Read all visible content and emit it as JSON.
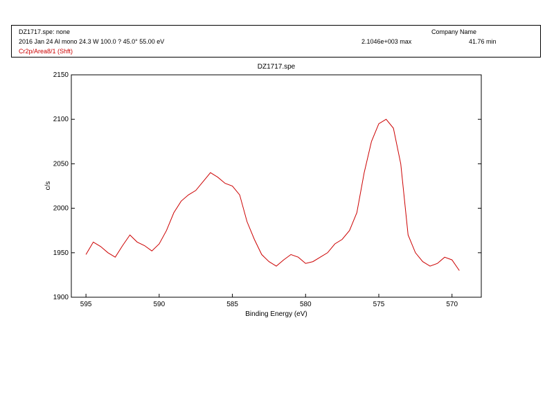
{
  "header": {
    "filename_line": "DZ1717.spe: none",
    "company": "Company Name",
    "acquisition_line": "2016 Jan 24  Al mono  24.3 W  100.0 ?  45.0°  55.00 eV",
    "max_counts": "2.1046e+003 max",
    "duration": "41.76 min",
    "region_label": "Cr2p/Area8/1 (Shft)"
  },
  "colors": {
    "trace": "#cc0000",
    "axis": "#000000"
  },
  "chart_data": {
    "type": "line",
    "title": "DZ1717.spe",
    "xlabel": "Binding Energy (eV)",
    "ylabel": "c/s",
    "xlim": [
      596,
      568
    ],
    "xdir": "reversed",
    "ylim": [
      1900,
      2150
    ],
    "xticks": [
      595,
      590,
      585,
      580,
      575,
      570
    ],
    "yticks": [
      1900,
      1950,
      2000,
      2050,
      2100,
      2150
    ],
    "grid": false,
    "series": [
      {
        "x": [
          595.0,
          594.5,
          594.0,
          593.5,
          593.0,
          592.5,
          592.0,
          591.5,
          591.0,
          590.5,
          590.0,
          589.5,
          589.0,
          588.5,
          588.0,
          587.5,
          587.0,
          586.5,
          586.0,
          585.5,
          585.0,
          584.5,
          584.0,
          583.5,
          583.0,
          582.5,
          582.0,
          581.5,
          581.0,
          580.5,
          580.0,
          579.5,
          579.0,
          578.5,
          578.0,
          577.5,
          577.0,
          576.5,
          576.0,
          575.5,
          575.0,
          574.5,
          574.0,
          573.5,
          573.0,
          572.5,
          572.0,
          571.5,
          571.0,
          570.5,
          570.0,
          569.5
        ],
        "values": [
          1948,
          1962,
          1957,
          1950,
          1945,
          1958,
          1970,
          1962,
          1958,
          1952,
          1960,
          1975,
          1995,
          2008,
          2015,
          2020,
          2030,
          2040,
          2035,
          2028,
          2025,
          2015,
          1985,
          1965,
          1948,
          1940,
          1935,
          1942,
          1948,
          1945,
          1938,
          1940,
          1945,
          1950,
          1960,
          1965,
          1975,
          1995,
          2040,
          2075,
          2095,
          2100,
          2090,
          2050,
          1970,
          1950,
          1940,
          1935,
          1938,
          1945,
          1942,
          1930
        ]
      }
    ]
  }
}
